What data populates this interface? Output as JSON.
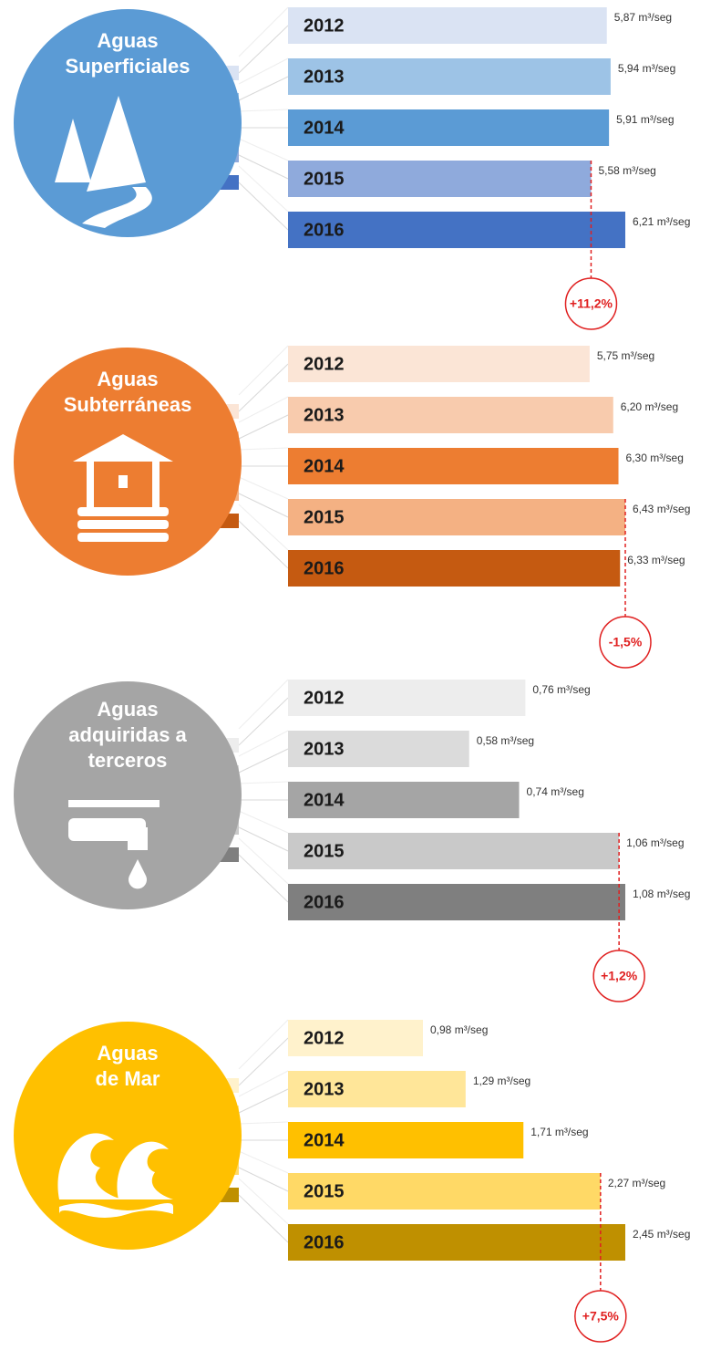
{
  "chart_data": [
    {
      "type": "bar",
      "title": [
        "Aguas",
        "Superficiales"
      ],
      "circle_color": "#5b9bd5",
      "categories": [
        "2012",
        "2013",
        "2014",
        "2015",
        "2016"
      ],
      "values": [
        5.87,
        5.94,
        5.91,
        5.58,
        6.21
      ],
      "value_labels": [
        "5,87 m³/seg",
        "5,94 m³/seg",
        "5,91 m³/seg",
        "5,58 m³/seg",
        "6,21 m³/seg"
      ],
      "colors": [
        "#dae3f3",
        "#9dc3e6",
        "#5b9bd5",
        "#8faadc",
        "#4472c4"
      ],
      "annotation": "+11,2%",
      "icon": "mountain"
    },
    {
      "type": "bar",
      "title": [
        "Aguas",
        "Subterráneas"
      ],
      "circle_color": "#ed7d31",
      "categories": [
        "2012",
        "2013",
        "2014",
        "2015",
        "2016"
      ],
      "values": [
        5.75,
        6.2,
        6.3,
        6.43,
        6.33
      ],
      "value_labels": [
        "5,75 m³/seg",
        "6,20 m³/seg",
        "6,30 m³/seg",
        "6,43 m³/seg",
        "6,33 m³/seg"
      ],
      "colors": [
        "#fbe5d6",
        "#f8cbad",
        "#ed7d31",
        "#f4b183",
        "#c55a11"
      ],
      "annotation": "-1,5%",
      "icon": "well"
    },
    {
      "type": "bar",
      "title": [
        "Aguas",
        "adquiridas a",
        "terceros"
      ],
      "circle_color": "#a5a5a5",
      "categories": [
        "2012",
        "2013",
        "2014",
        "2015",
        "2016"
      ],
      "values": [
        0.76,
        0.58,
        0.74,
        1.06,
        1.08
      ],
      "value_labels": [
        "0,76 m³/seg",
        "0,58 m³/seg",
        "0,74 m³/seg",
        "1,06 m³/seg",
        "1,08 m³/seg"
      ],
      "colors": [
        "#ededed",
        "#dbdbdb",
        "#a5a5a5",
        "#c9c9c9",
        "#7f7f7f"
      ],
      "annotation": "+1,2%",
      "icon": "tap"
    },
    {
      "type": "bar",
      "title": [
        "Aguas",
        "de Mar"
      ],
      "circle_color": "#ffc000",
      "categories": [
        "2012",
        "2013",
        "2014",
        "2015",
        "2016"
      ],
      "values": [
        0.98,
        1.29,
        1.71,
        2.27,
        2.45
      ],
      "value_labels": [
        "0,98 m³/seg",
        "1,29 m³/seg",
        "1,71 m³/seg",
        "2,27 m³/seg",
        "2,45 m³/seg"
      ],
      "colors": [
        "#fff2cc",
        "#ffe699",
        "#ffc000",
        "#ffd966",
        "#bf9000"
      ],
      "annotation": "+7,5%",
      "icon": "wave"
    }
  ]
}
